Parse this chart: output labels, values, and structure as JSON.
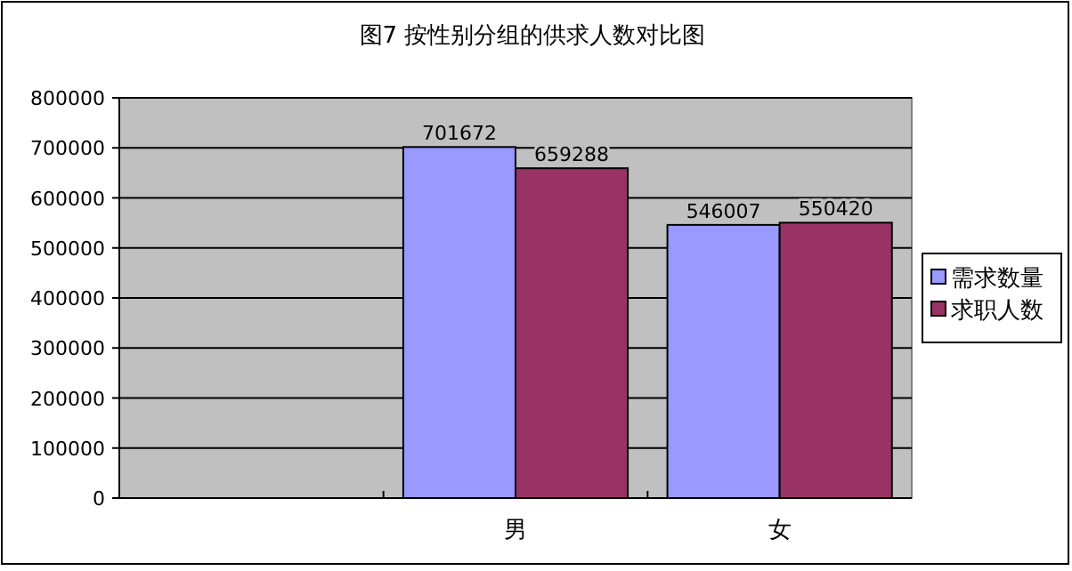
{
  "chart_data": {
    "type": "bar",
    "title": "图7 按性别分组的供求人数对比图",
    "categories": [
      null,
      "男",
      "女"
    ],
    "series": [
      {
        "name": "需求数量",
        "color": "#9999ff",
        "values": [
          null,
          701672,
          546007
        ]
      },
      {
        "name": "求职人数",
        "color": "#993366",
        "values": [
          null,
          659288,
          550420
        ]
      }
    ],
    "ylim": [
      0,
      800000
    ],
    "yticks": [
      0,
      100000,
      200000,
      300000,
      400000,
      500000,
      600000,
      700000,
      800000
    ],
    "grid": "y",
    "legend": "right",
    "data_labels": true
  }
}
